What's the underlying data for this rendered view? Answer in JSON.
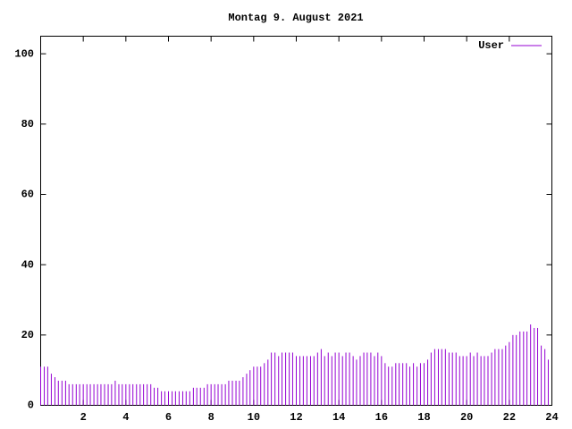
{
  "chart_data": {
    "type": "impulse",
    "title": "Montag 9. August 2021",
    "series": [
      {
        "name": "User",
        "color": "#9400d3",
        "x": [
          0,
          0.17,
          0.33,
          0.5,
          0.67,
          0.83,
          1,
          1.17,
          1.33,
          1.5,
          1.67,
          1.83,
          2,
          2.17,
          2.33,
          2.5,
          2.67,
          2.83,
          3,
          3.17,
          3.33,
          3.5,
          3.67,
          3.83,
          4,
          4.17,
          4.33,
          4.5,
          4.67,
          4.83,
          5,
          5.17,
          5.33,
          5.5,
          5.67,
          5.83,
          6,
          6.17,
          6.33,
          6.5,
          6.67,
          6.83,
          7,
          7.17,
          7.33,
          7.5,
          7.67,
          7.83,
          8,
          8.17,
          8.33,
          8.5,
          8.67,
          8.83,
          9,
          9.17,
          9.33,
          9.5,
          9.67,
          9.83,
          10,
          10.17,
          10.33,
          10.5,
          10.67,
          10.83,
          11,
          11.17,
          11.33,
          11.5,
          11.67,
          11.83,
          12,
          12.17,
          12.33,
          12.5,
          12.67,
          12.83,
          13,
          13.17,
          13.33,
          13.5,
          13.67,
          13.83,
          14,
          14.17,
          14.33,
          14.5,
          14.67,
          14.83,
          15,
          15.17,
          15.33,
          15.5,
          15.67,
          15.83,
          16,
          16.17,
          16.33,
          16.5,
          16.67,
          16.83,
          17,
          17.17,
          17.33,
          17.5,
          17.67,
          17.83,
          18,
          18.17,
          18.33,
          18.5,
          18.67,
          18.83,
          19,
          19.17,
          19.33,
          19.5,
          19.67,
          19.83,
          20,
          20.17,
          20.33,
          20.5,
          20.67,
          20.83,
          21,
          21.17,
          21.33,
          21.5,
          21.67,
          21.83,
          22,
          22.17,
          22.33,
          22.5,
          22.67,
          22.83,
          23,
          23.17,
          23.33,
          23.5,
          23.67,
          23.83
        ],
        "values": [
          11,
          11,
          11,
          9,
          8,
          7,
          7,
          7,
          6,
          6,
          6,
          6,
          6,
          6,
          6,
          6,
          6,
          6,
          6,
          6,
          6,
          7,
          6,
          6,
          6,
          6,
          6,
          6,
          6,
          6,
          6,
          6,
          5,
          5,
          4,
          4,
          4,
          4,
          4,
          4,
          4,
          4,
          4,
          5,
          5,
          5,
          5,
          6,
          6,
          6,
          6,
          6,
          6,
          7,
          7,
          7,
          7,
          8,
          9,
          10,
          11,
          11,
          11,
          12,
          13,
          15,
          15,
          14,
          15,
          15,
          15,
          15,
          14,
          14,
          14,
          14,
          14,
          14,
          15,
          16,
          14,
          15,
          14,
          15,
          15,
          14,
          15,
          15,
          14,
          13,
          14,
          15,
          15,
          15,
          14,
          15,
          14,
          12,
          11,
          11,
          12,
          12,
          12,
          12,
          11,
          12,
          11,
          12,
          12,
          13,
          15,
          16,
          16,
          16,
          16,
          15,
          15,
          15,
          14,
          14,
          14,
          15,
          14,
          15,
          14,
          14,
          14,
          15,
          16,
          16,
          16,
          17,
          18,
          20,
          20,
          21,
          21,
          21,
          23,
          22,
          22,
          17,
          16,
          13
        ]
      }
    ],
    "xlim": [
      0,
      24
    ],
    "xticks": [
      2,
      4,
      6,
      8,
      10,
      12,
      14,
      16,
      18,
      20,
      22,
      24
    ],
    "ylim": [
      0,
      105
    ],
    "yticks": [
      0,
      20,
      40,
      60,
      80,
      100
    ],
    "legend": "top-right"
  }
}
